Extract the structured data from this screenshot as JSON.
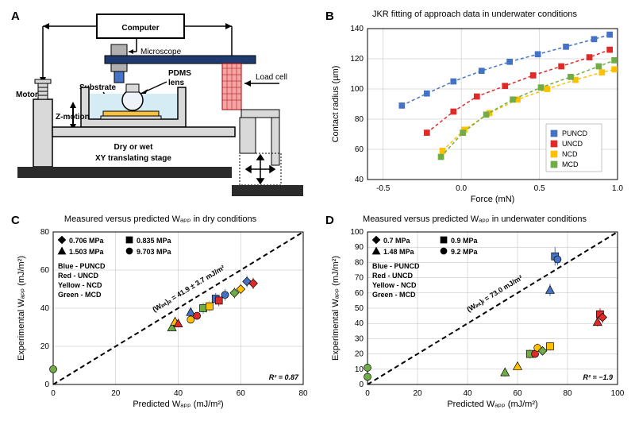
{
  "panelA": {
    "label": "A",
    "labels": {
      "computer": "Computer",
      "microscope": "Microscope",
      "motor": "Motor",
      "zmotion": "Z-motion",
      "substrate": "Substrate",
      "pdms1": "PDMS",
      "pdms2": "lens",
      "loadcell": "Load cell",
      "drywet": "Dry or wet",
      "xystage": "XY translating stage"
    }
  },
  "panelB": {
    "label": "B",
    "title": "JKR fitting of approach data in underwater conditions",
    "xlabel": "Force (mN)",
    "ylabel": "Contact radius (µm)",
    "xlim": [
      -0.6,
      1.0
    ],
    "ylim": [
      40,
      140
    ],
    "xticks": [
      -0.5,
      0.0,
      0.5,
      1.0
    ],
    "yticks": [
      40,
      60,
      80,
      100,
      120,
      140
    ],
    "series": [
      {
        "name": "PUNCD",
        "color": "#4472c4",
        "x": [
          -0.38,
          -0.22,
          -0.05,
          0.13,
          0.31,
          0.49,
          0.67,
          0.85,
          0.95
        ],
        "y": [
          89,
          97,
          105,
          112,
          118,
          123,
          128,
          133,
          136
        ]
      },
      {
        "name": "UNCD",
        "color": "#e02a2a",
        "x": [
          -0.22,
          -0.05,
          0.1,
          0.28,
          0.46,
          0.64,
          0.82,
          0.95
        ],
        "y": [
          71,
          85,
          95,
          102,
          109,
          115,
          121,
          126
        ]
      },
      {
        "name": "NCD",
        "color": "#ffc000",
        "x": [
          -0.12,
          0.02,
          0.18,
          0.36,
          0.55,
          0.73,
          0.9,
          0.98
        ],
        "y": [
          59,
          73,
          84,
          93,
          100,
          106,
          111,
          113
        ]
      },
      {
        "name": "MCD",
        "color": "#70ad47",
        "x": [
          -0.13,
          0.01,
          0.16,
          0.33,
          0.51,
          0.7,
          0.88,
          0.98
        ],
        "y": [
          55,
          71,
          83,
          93,
          101,
          108,
          115,
          119
        ]
      }
    ]
  },
  "panelC": {
    "label": "C",
    "title": "Measured versus predicted Wₐₚₚ in dry conditions",
    "xlabel": "Predicted Wₐₚₚ (mJ/m²)",
    "ylabel": "Experimental Wₐₚₚ (mJ/m²)",
    "xlim": [
      0,
      80
    ],
    "ylim": [
      0,
      80
    ],
    "xticks": [
      0,
      20,
      40,
      60,
      80
    ],
    "yticks": [
      0,
      20,
      40,
      60,
      80
    ],
    "diag_label": "(Wᵢₙₜ)ₐ = 41.9 ± 3.7 mJ/m²",
    "r2": "R² = 0.87",
    "legend_shapes": [
      {
        "shape": "diamond",
        "label": "0.706 MPa"
      },
      {
        "shape": "square",
        "label": "0.835 MPa"
      },
      {
        "shape": "triangle",
        "label": "1.503 MPa"
      },
      {
        "shape": "circle",
        "label": "9.703 MPa"
      }
    ],
    "color_legend": [
      {
        "color": "#4472c4",
        "label": "Blue - PUNCD"
      },
      {
        "color": "#e02a2a",
        "label": "Red - UNCD"
      },
      {
        "color": "#ffc000",
        "label": "Yellow - NCD"
      },
      {
        "color": "#70ad47",
        "label": "Green - MCD"
      }
    ],
    "points": [
      {
        "x": 0,
        "y": 8,
        "c": "#70ad47",
        "s": "circle",
        "err": 2
      },
      {
        "x": 38,
        "y": 30,
        "c": "#70ad47",
        "s": "triangle",
        "err": 2
      },
      {
        "x": 39,
        "y": 33,
        "c": "#ffc000",
        "s": "triangle",
        "err": 2
      },
      {
        "x": 40,
        "y": 32,
        "c": "#e02a2a",
        "s": "triangle",
        "err": 2
      },
      {
        "x": 44,
        "y": 38,
        "c": "#4472c4",
        "s": "triangle",
        "err": 2
      },
      {
        "x": 44,
        "y": 34,
        "c": "#ffc000",
        "s": "circle",
        "err": 2
      },
      {
        "x": 46,
        "y": 36,
        "c": "#e02a2a",
        "s": "circle",
        "err": 2
      },
      {
        "x": 48,
        "y": 40,
        "c": "#70ad47",
        "s": "square",
        "err": 3
      },
      {
        "x": 50,
        "y": 41,
        "c": "#ffc000",
        "s": "square",
        "err": 3
      },
      {
        "x": 52,
        "y": 45,
        "c": "#4472c4",
        "s": "square",
        "err": 3
      },
      {
        "x": 53,
        "y": 44,
        "c": "#e02a2a",
        "s": "square",
        "err": 3
      },
      {
        "x": 55,
        "y": 47,
        "c": "#4472c4",
        "s": "circle",
        "err": 3
      },
      {
        "x": 58,
        "y": 48,
        "c": "#70ad47",
        "s": "diamond",
        "err": 3
      },
      {
        "x": 60,
        "y": 50,
        "c": "#ffc000",
        "s": "diamond",
        "err": 3
      },
      {
        "x": 62,
        "y": 54,
        "c": "#4472c4",
        "s": "diamond",
        "err": 3
      },
      {
        "x": 64,
        "y": 53,
        "c": "#e02a2a",
        "s": "diamond",
        "err": 3
      }
    ]
  },
  "panelD": {
    "label": "D",
    "title": "Measured versus predicted Wₐₚₚ in underwater conditions",
    "xlabel": "Predicted Wₐₚₚ (mJ/m²)",
    "ylabel": "Experimental Wₐₚₚ (mJ/m²)",
    "xlim": [
      0,
      100
    ],
    "ylim": [
      0,
      100
    ],
    "xticks": [
      0,
      20,
      40,
      60,
      80,
      100
    ],
    "yticks": [
      0,
      10,
      20,
      30,
      40,
      50,
      60,
      70,
      80,
      90,
      100
    ],
    "diag_label": "(Wᵢₙₜ)ₗ = 73.0 mJ/m²",
    "r2": "R² = −1.9",
    "legend_shapes": [
      {
        "shape": "diamond",
        "label": "0.7 MPa"
      },
      {
        "shape": "square",
        "label": "0.9 MPa"
      },
      {
        "shape": "triangle",
        "label": "1.48 MPa"
      },
      {
        "shape": "circle",
        "label": "9.2 MPa"
      }
    ],
    "color_legend": [
      {
        "color": "#4472c4",
        "label": "Blue - PUNCD"
      },
      {
        "color": "#e02a2a",
        "label": "Red - UNCD"
      },
      {
        "color": "#ffc000",
        "label": "Yellow - NCD"
      },
      {
        "color": "#70ad47",
        "label": "Green - MCD"
      }
    ],
    "points": [
      {
        "x": 0,
        "y": 5,
        "c": "#70ad47",
        "s": "circle",
        "err": 2
      },
      {
        "x": 0,
        "y": 11,
        "c": "#70ad47",
        "s": "circle",
        "err": 2
      },
      {
        "x": 55,
        "y": 8,
        "c": "#70ad47",
        "s": "triangle",
        "err": 3
      },
      {
        "x": 60,
        "y": 12,
        "c": "#ffc000",
        "s": "triangle",
        "err": 3
      },
      {
        "x": 65,
        "y": 20,
        "c": "#70ad47",
        "s": "square",
        "err": 3
      },
      {
        "x": 67,
        "y": 20,
        "c": "#e02a2a",
        "s": "circle",
        "err": 2
      },
      {
        "x": 68,
        "y": 24,
        "c": "#ffc000",
        "s": "circle",
        "err": 3
      },
      {
        "x": 70,
        "y": 22,
        "c": "#70ad47",
        "s": "diamond",
        "err": 3
      },
      {
        "x": 73,
        "y": 25,
        "c": "#ffc000",
        "s": "square",
        "err": 3
      },
      {
        "x": 73,
        "y": 62,
        "c": "#4472c4",
        "s": "triangle",
        "err": 4
      },
      {
        "x": 75,
        "y": 84,
        "c": "#4472c4",
        "s": "square",
        "err": 6
      },
      {
        "x": 76,
        "y": 82,
        "c": "#4472c4",
        "s": "circle",
        "err": 4
      },
      {
        "x": 92,
        "y": 41,
        "c": "#e02a2a",
        "s": "triangle",
        "err": 3
      },
      {
        "x": 93,
        "y": 46,
        "c": "#e02a2a",
        "s": "square",
        "err": 4
      },
      {
        "x": 94,
        "y": 44,
        "c": "#e02a2a",
        "s": "diamond",
        "err": 4
      }
    ]
  }
}
